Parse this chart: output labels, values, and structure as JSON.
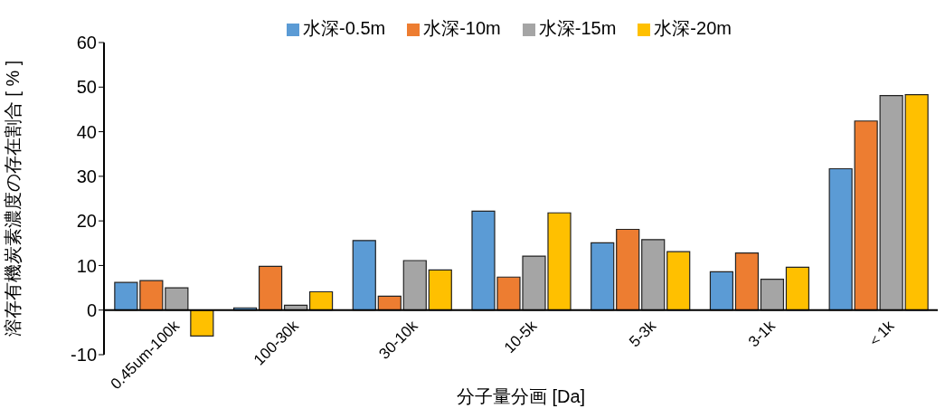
{
  "chart_data": {
    "type": "bar",
    "xlabel": "分子量分画 [Da]",
    "ylabel": "溶存有機炭素濃度の存在割合 [ % ]",
    "categories": [
      "0.45um-100k",
      "100-30k",
      "30-10k",
      "10-5k",
      "5-3k",
      "3-1k",
      "＜1k"
    ],
    "series": [
      {
        "name": "水深-0.5m",
        "color": "#5b9bd5",
        "values": [
          6.2,
          0.5,
          15.6,
          22.2,
          15.1,
          8.6,
          31.7
        ]
      },
      {
        "name": "水深-10m",
        "color": "#ed7d31",
        "values": [
          6.6,
          9.8,
          3.1,
          7.4,
          18.1,
          12.8,
          42.4
        ]
      },
      {
        "name": "水深-15m",
        "color": "#a5a5a5",
        "values": [
          5.0,
          1.1,
          11.1,
          12.1,
          15.8,
          6.9,
          48.1
        ]
      },
      {
        "name": "水深-20m",
        "color": "#ffc000",
        "values": [
          -5.8,
          4.1,
          9.0,
          21.8,
          13.1,
          9.6,
          48.3
        ]
      }
    ],
    "ylim": [
      -10,
      60
    ],
    "yticks": [
      -10,
      0,
      10,
      20,
      30,
      40,
      50,
      60
    ],
    "grid": false,
    "legend": "top"
  }
}
